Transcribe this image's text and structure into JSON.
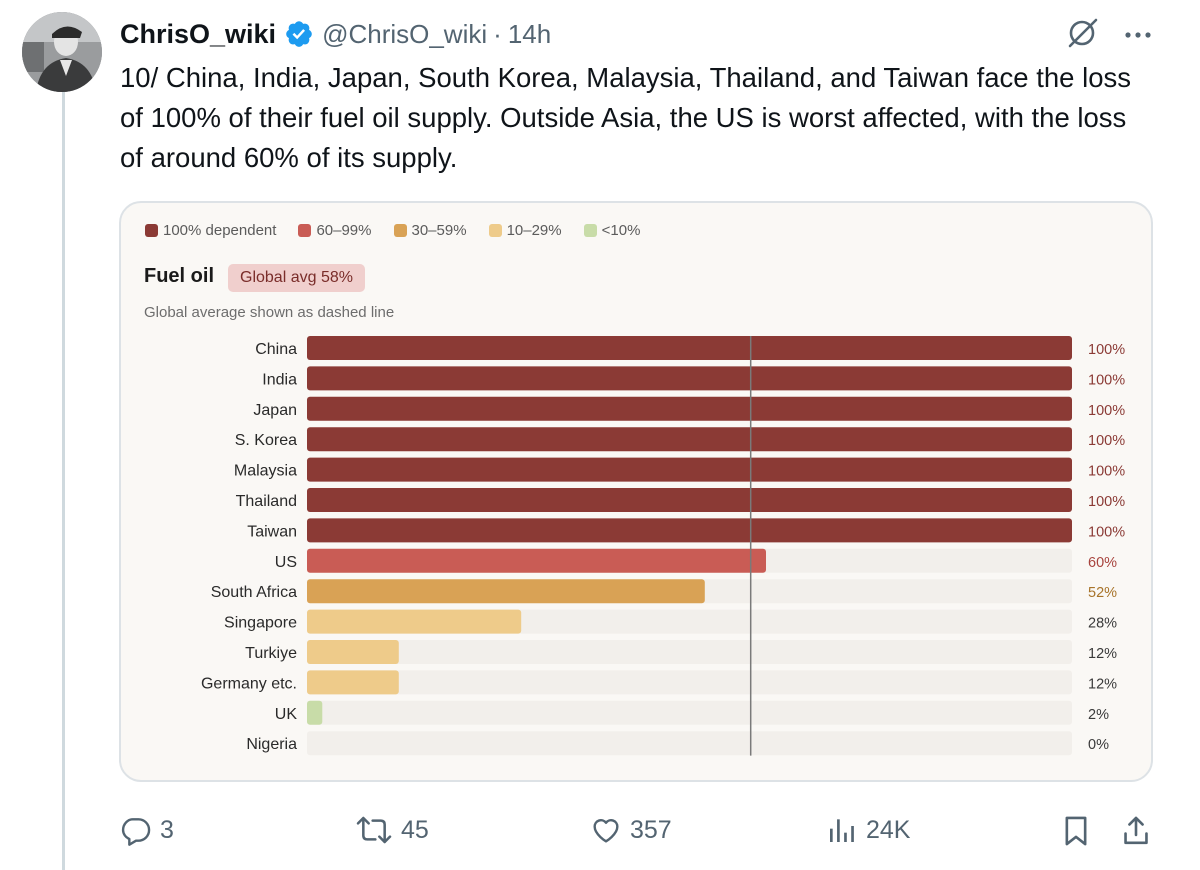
{
  "tweet": {
    "display_name": "ChrisO_wiki",
    "handle": "@ChrisO_wiki",
    "separator": "·",
    "time": "14h",
    "text": "10/ China, India, Japan, South Korea, Malaysia, Thailand, and Taiwan face the loss of 100% of their fuel oil supply. Outside Asia, the US is worst affected, with the loss of around 60% of its supply."
  },
  "icons": {
    "verified": "verified-badge-icon",
    "grok": "grok-icon",
    "more": "more-icon",
    "reply": "reply-icon",
    "retweet": "retweet-icon",
    "like": "like-icon",
    "views": "views-icon",
    "bookmark": "bookmark-icon",
    "share": "share-icon"
  },
  "colors": {
    "accent": "#1d9bf0",
    "legend": [
      "#8b3a35",
      "#c95c55",
      "#d9a255",
      "#eecb8a",
      "#c8dca8"
    ],
    "track": "#f2efeb",
    "avg_line": "#7a7a7a"
  },
  "actions": {
    "replies": "3",
    "retweets": "45",
    "likes": "357",
    "views": "24K"
  },
  "chart_data": {
    "type": "bar",
    "orientation": "horizontal",
    "title": "Fuel oil",
    "badge": "Global avg 58%",
    "subtitle": "Global average shown as dashed line",
    "legend": [
      {
        "label": "100% dependent",
        "color": "#8b3a35"
      },
      {
        "label": "60–99%",
        "color": "#c95c55"
      },
      {
        "label": "30–59%",
        "color": "#d9a255"
      },
      {
        "label": "10–29%",
        "color": "#eecb8a"
      },
      {
        "label": "<10%",
        "color": "#c8dca8"
      }
    ],
    "categories": [
      "China",
      "India",
      "Japan",
      "S. Korea",
      "Malaysia",
      "Thailand",
      "Taiwan",
      "US",
      "South Africa",
      "Singapore",
      "Turkiye",
      "Germany etc.",
      "UK",
      "Nigeria"
    ],
    "values": [
      100,
      100,
      100,
      100,
      100,
      100,
      100,
      60,
      52,
      28,
      12,
      12,
      2,
      0
    ],
    "value_labels": [
      "100%",
      "100%",
      "100%",
      "100%",
      "100%",
      "100%",
      "100%",
      "60%",
      "52%",
      "28%",
      "12%",
      "12%",
      "2%",
      "0%"
    ],
    "global_average": 58,
    "xlim": [
      0,
      100
    ],
    "grid": false
  }
}
